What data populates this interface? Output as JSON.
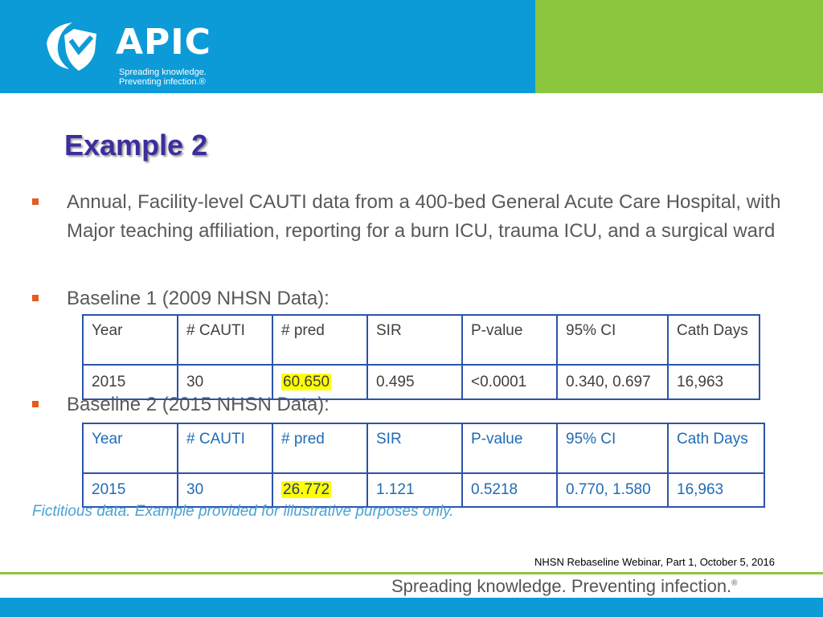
{
  "logo": {
    "wordmark": "APIC",
    "tagline_line1": "Spreading knowledge.",
    "tagline_line2": "Preventing infection.®"
  },
  "title": "Example 2",
  "bullets": [
    "Annual, Facility-level CAUTI data from a 400-bed General Acute Care Hospital, with Major teaching affiliation, reporting for a burn ICU, trauma ICU, and a surgical ward",
    "Baseline 1 (2009 NHSN Data):",
    "Baseline 2 (2015 NHSN Data):"
  ],
  "table1": {
    "headers": [
      "Year",
      "# CAUTI",
      "# pred",
      "SIR",
      "P-value",
      "95% CI",
      "Cath Days"
    ],
    "row": [
      "2015",
      "30",
      "60.650",
      "0.495",
      "<0.0001",
      "0.340, 0.697",
      "16,963"
    ]
  },
  "table2": {
    "headers": [
      "Year",
      "# CAUTI",
      "# pred",
      "SIR",
      "P-value",
      "95% CI",
      "Cath Days"
    ],
    "row": [
      "2015",
      "30",
      "26.772",
      "1.121",
      "0.5218",
      "0.770, 1.580",
      "16,963"
    ]
  },
  "footnote": "Fictitious data. Example provided for illustrative purposes only.",
  "citation": "NHSN Rebaseline Webinar, Part 1, October 5, 2016",
  "footer_tagline": "Spreading knowledge. Preventing infection.",
  "footer_mark": "®",
  "colors": {
    "header_blue": "#0d9bd7",
    "header_green": "#8cc63f",
    "title": "#3a2f9e",
    "bullet_mark": "#e85a1e",
    "table_border": "#2b54a8",
    "highlight": "#ffff00"
  }
}
